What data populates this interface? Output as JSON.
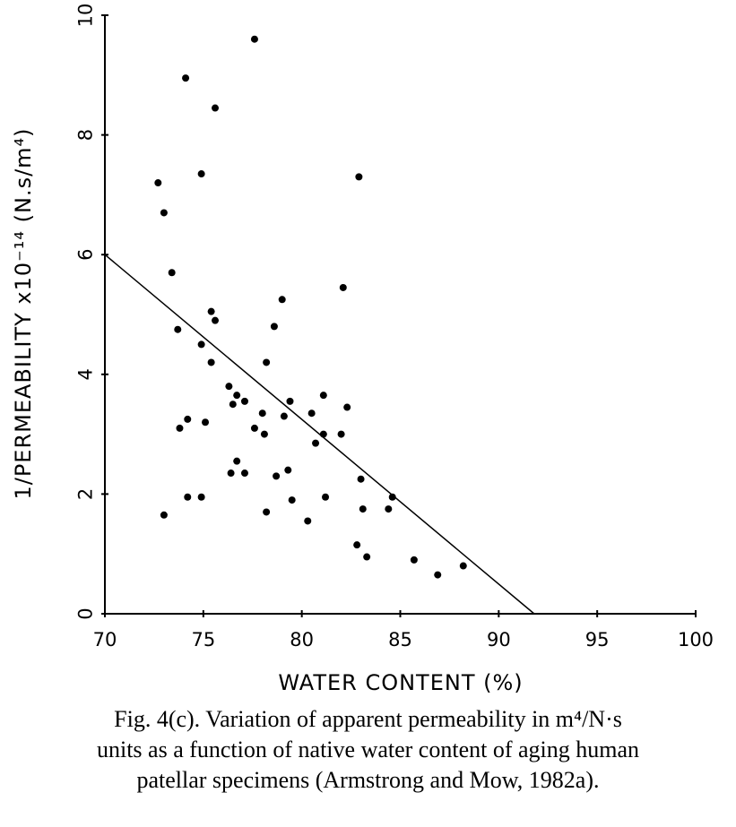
{
  "chart_data": {
    "type": "scatter",
    "title": "",
    "xlabel": "WATER CONTENT (%)",
    "ylabel": "1/PERMEABILITY x10⁻¹⁴ (N.s/m⁴)",
    "xlim": [
      70,
      100
    ],
    "ylim": [
      0,
      10
    ],
    "xticks": [
      "70",
      "75",
      "80",
      "85",
      "90",
      "95",
      "100"
    ],
    "yticks": [
      "0",
      "2",
      "4",
      "6",
      "8",
      "10"
    ],
    "grid": false,
    "series": [
      {
        "points": [
          [
            72.7,
            7.2
          ],
          [
            73.0,
            6.7
          ],
          [
            73.4,
            5.7
          ],
          [
            73.0,
            1.65
          ],
          [
            73.7,
            4.75
          ],
          [
            73.8,
            3.1
          ],
          [
            74.1,
            8.95
          ],
          [
            74.2,
            3.25
          ],
          [
            74.2,
            1.95
          ],
          [
            74.9,
            7.35
          ],
          [
            74.9,
            4.5
          ],
          [
            74.9,
            1.95
          ],
          [
            75.1,
            3.2
          ],
          [
            75.4,
            5.05
          ],
          [
            75.4,
            4.2
          ],
          [
            75.6,
            8.45
          ],
          [
            75.6,
            4.9
          ],
          [
            76.3,
            3.8
          ],
          [
            76.4,
            2.35
          ],
          [
            76.5,
            3.5
          ],
          [
            76.7,
            2.55
          ],
          [
            76.7,
            3.65
          ],
          [
            77.1,
            3.55
          ],
          [
            77.1,
            2.35
          ],
          [
            77.6,
            9.6
          ],
          [
            77.6,
            3.1
          ],
          [
            78.0,
            3.35
          ],
          [
            78.1,
            3.0
          ],
          [
            78.2,
            4.2
          ],
          [
            78.2,
            1.7
          ],
          [
            78.6,
            4.8
          ],
          [
            78.7,
            2.3
          ],
          [
            79.0,
            5.25
          ],
          [
            79.1,
            3.3
          ],
          [
            79.3,
            2.4
          ],
          [
            79.4,
            3.55
          ],
          [
            79.5,
            1.9
          ],
          [
            80.3,
            1.55
          ],
          [
            80.5,
            3.35
          ],
          [
            80.7,
            2.85
          ],
          [
            81.1,
            3.0
          ],
          [
            81.1,
            3.65
          ],
          [
            81.2,
            1.95
          ],
          [
            82.0,
            3.0
          ],
          [
            82.1,
            5.45
          ],
          [
            82.3,
            3.45
          ],
          [
            82.8,
            1.15
          ],
          [
            82.9,
            7.3
          ],
          [
            83.0,
            2.25
          ],
          [
            83.1,
            1.75
          ],
          [
            83.3,
            0.95
          ],
          [
            84.4,
            1.75
          ],
          [
            84.6,
            1.95
          ],
          [
            85.7,
            0.9
          ],
          [
            86.9,
            0.65
          ],
          [
            88.2,
            0.8
          ]
        ]
      }
    ],
    "fit_line": {
      "x": [
        70,
        91.8
      ],
      "y": [
        6.0,
        0
      ]
    }
  },
  "caption": {
    "line1": "Fig. 4(c). Variation of apparent permeability in m⁴/N·s",
    "line2": "units as a function of native water content of aging human",
    "line3": "patellar specimens (Armstrong and Mow, 1982a)."
  }
}
